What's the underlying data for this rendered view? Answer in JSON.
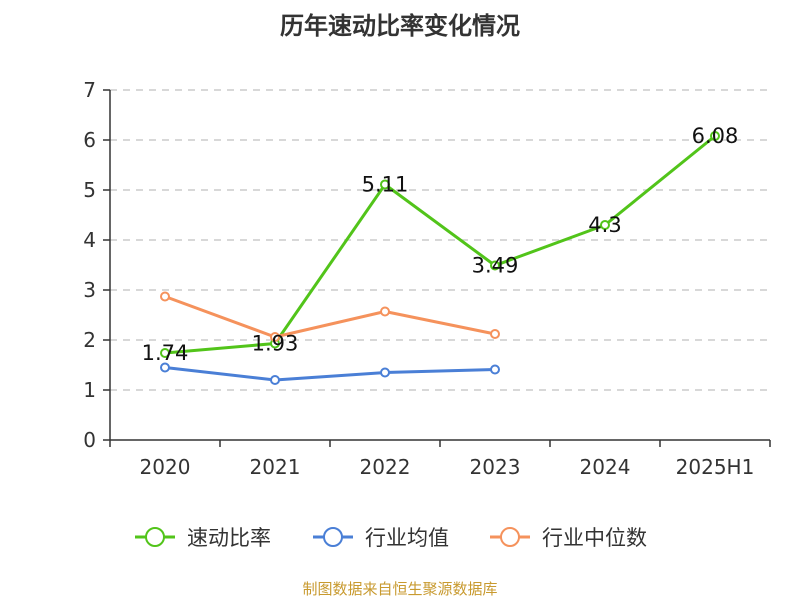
{
  "chart_data": {
    "type": "line",
    "title": "历年速动比率变化情况",
    "categories": [
      "2020",
      "2021",
      "2022",
      "2023",
      "2024",
      "2025H1"
    ],
    "ylim": [
      0,
      7
    ],
    "yticks": [
      0,
      1,
      2,
      3,
      4,
      5,
      6,
      7
    ],
    "grid": true,
    "legend_position": "bottom",
    "series": [
      {
        "name": "速动比率",
        "color": "#52c41a",
        "values": [
          1.74,
          1.93,
          5.11,
          3.49,
          4.3,
          6.08
        ],
        "labels": [
          "1.74",
          "1.93",
          "5.11",
          "3.49",
          "4.3",
          "6.08"
        ]
      },
      {
        "name": "行业均值",
        "color": "#4a7fd6",
        "values": [
          1.45,
          1.2,
          1.35,
          1.41,
          null,
          null
        ]
      },
      {
        "name": "行业中位数",
        "color": "#f5925c",
        "values": [
          2.87,
          2.06,
          2.57,
          2.12,
          null,
          null
        ]
      }
    ]
  },
  "footer": {
    "source": "制图数据来自恒生聚源数据库"
  }
}
